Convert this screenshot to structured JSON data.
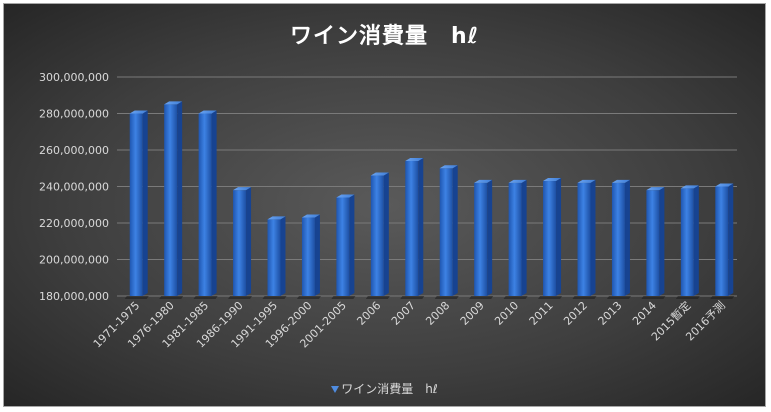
{
  "chart_data": {
    "type": "bar",
    "title": "ワイン消費量　hℓ",
    "categories": [
      "1971-1975",
      "1976-1980",
      "1981-1985",
      "1986-1990",
      "1991-1995",
      "1996-2000",
      "2001-2005",
      "2006",
      "2007",
      "2008",
      "2009",
      "2010",
      "2011",
      "2012",
      "2013",
      "2014",
      "2015暫定",
      "2016予測"
    ],
    "series": [
      {
        "name": "ワイン消費量　hℓ",
        "values": [
          280000000,
          285000000,
          280000000,
          238000000,
          222000000,
          223000000,
          234000000,
          246000000,
          254000000,
          250000000,
          242000000,
          242000000,
          243000000,
          242000000,
          242000000,
          238000000,
          239000000,
          240000000
        ]
      }
    ],
    "ylim": [
      180000000,
      300000000
    ],
    "yticks": [
      "180,000,000",
      "200,000,000",
      "220,000,000",
      "240,000,000",
      "260,000,000",
      "280,000,000",
      "300,000,000"
    ],
    "ytick_values": [
      180000000,
      200000000,
      220000000,
      240000000,
      260000000,
      280000000,
      300000000
    ],
    "grid": true,
    "legend_position": "bottom",
    "bar_color": "#2e6fd1"
  }
}
